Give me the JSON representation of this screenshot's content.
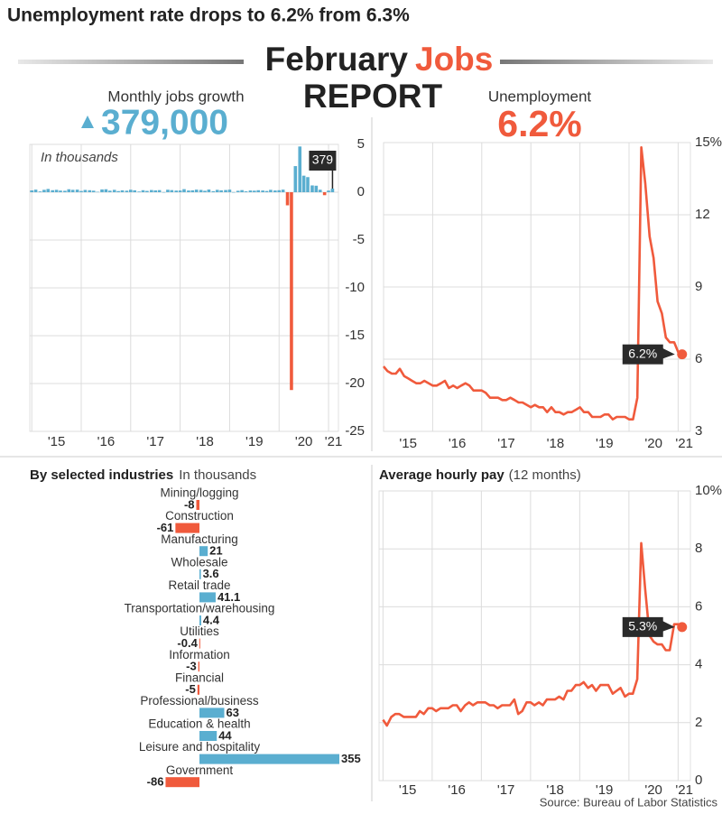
{
  "headline": "Unemployment rate drops to 6.2% from 6.3%",
  "title": {
    "month": "February",
    "topic": "Jobs",
    "kind": "REPORT"
  },
  "source": "Source: Bureau of Labor Statistics",
  "chart_data": [
    {
      "type": "bar",
      "title": "Monthly jobs growth",
      "highlight": "379,000",
      "note": "In thousands",
      "x": [
        2015,
        2015.08,
        2015.17,
        2015.25,
        2015.33,
        2015.42,
        2015.5,
        2015.58,
        2015.67,
        2015.75,
        2015.83,
        2015.92,
        2016,
        2016.08,
        2016.17,
        2016.25,
        2016.33,
        2016.42,
        2016.5,
        2016.58,
        2016.67,
        2016.75,
        2016.83,
        2016.92,
        2017,
        2017.08,
        2017.17,
        2017.25,
        2017.33,
        2017.42,
        2017.5,
        2017.58,
        2017.67,
        2017.75,
        2017.83,
        2017.92,
        2018,
        2018.08,
        2018.17,
        2018.25,
        2018.33,
        2018.42,
        2018.5,
        2018.58,
        2018.67,
        2018.75,
        2018.83,
        2018.92,
        2019,
        2019.08,
        2019.17,
        2019.25,
        2019.33,
        2019.42,
        2019.5,
        2019.58,
        2019.67,
        2019.75,
        2019.83,
        2019.92,
        2020,
        2020.08,
        2020.17,
        2020.25,
        2020.33,
        2020.42,
        2020.5,
        2020.58,
        2020.67,
        2020.75,
        2020.83,
        2020.92,
        2021,
        2021.08
      ],
      "values": [
        0.19,
        0.27,
        0.08,
        0.25,
        0.34,
        0.21,
        0.25,
        0.17,
        0.15,
        0.31,
        0.25,
        0.27,
        0.13,
        0.24,
        0.21,
        0.16,
        0.04,
        0.29,
        0.31,
        0.16,
        0.25,
        0.12,
        0.2,
        0.16,
        0.26,
        0.2,
        0.07,
        0.21,
        0.14,
        0.23,
        0.19,
        0.22,
        0.01,
        0.26,
        0.22,
        0.17,
        0.18,
        0.32,
        0.18,
        0.2,
        0.27,
        0.24,
        0.15,
        0.28,
        0.11,
        0.25,
        0.2,
        0.23,
        0.27,
        0.01,
        0.15,
        0.22,
        0.09,
        0.18,
        0.16,
        0.21,
        0.18,
        0.13,
        0.25,
        0.18,
        0.21,
        0.27,
        -1.37,
        -20.68,
        2.73,
        4.78,
        1.73,
        1.58,
        0.71,
        0.68,
        0.26,
        -0.31,
        0.17,
        0.379
      ],
      "annotation": {
        "x": 2021.08,
        "label": "379"
      },
      "positive_color": "#5aaed0",
      "negative_color": "#f05a3c",
      "xlim": [
        2014.96,
        2021.2
      ],
      "ylim": [
        -25,
        5
      ],
      "xticks": [
        {
          "value": 2015,
          "label": "'15"
        },
        {
          "value": 2016,
          "label": "'16"
        },
        {
          "value": 2017,
          "label": "'17"
        },
        {
          "value": 2018,
          "label": "'18"
        },
        {
          "value": 2019,
          "label": "'19"
        },
        {
          "value": 2020,
          "label": "'20"
        },
        {
          "value": 2021,
          "label": "'21"
        }
      ],
      "yticks": [
        5,
        0,
        -5,
        -10,
        -15,
        -20,
        -25
      ],
      "grid": true
    },
    {
      "type": "line",
      "title": "Unemployment",
      "highlight": "6.2%",
      "x": [
        2015,
        2015.08,
        2015.17,
        2015.25,
        2015.33,
        2015.42,
        2015.5,
        2015.58,
        2015.67,
        2015.75,
        2015.83,
        2015.92,
        2016,
        2016.08,
        2016.17,
        2016.25,
        2016.33,
        2016.42,
        2016.5,
        2016.58,
        2016.67,
        2016.75,
        2016.83,
        2016.92,
        2017,
        2017.08,
        2017.17,
        2017.25,
        2017.33,
        2017.42,
        2017.5,
        2017.58,
        2017.67,
        2017.75,
        2017.83,
        2017.92,
        2018,
        2018.08,
        2018.17,
        2018.25,
        2018.33,
        2018.42,
        2018.5,
        2018.58,
        2018.67,
        2018.75,
        2018.83,
        2018.92,
        2019,
        2019.08,
        2019.17,
        2019.25,
        2019.33,
        2019.42,
        2019.5,
        2019.58,
        2019.67,
        2019.75,
        2019.83,
        2019.92,
        2020,
        2020.08,
        2020.17,
        2020.25,
        2020.33,
        2020.42,
        2020.5,
        2020.58,
        2020.67,
        2020.75,
        2020.83,
        2020.92,
        2021,
        2021.08
      ],
      "series": [
        {
          "color": "#f05a3c",
          "values": [
            5.7,
            5.5,
            5.4,
            5.4,
            5.6,
            5.3,
            5.2,
            5.1,
            5.0,
            5.0,
            5.1,
            5.0,
            4.9,
            4.9,
            5.0,
            5.1,
            4.8,
            4.9,
            4.8,
            4.9,
            5.0,
            4.9,
            4.7,
            4.7,
            4.7,
            4.6,
            4.4,
            4.4,
            4.4,
            4.3,
            4.3,
            4.4,
            4.3,
            4.2,
            4.2,
            4.1,
            4.0,
            4.1,
            4.0,
            4.0,
            3.8,
            4.0,
            3.8,
            3.8,
            3.7,
            3.8,
            3.8,
            3.9,
            4.0,
            3.8,
            3.8,
            3.6,
            3.6,
            3.6,
            3.7,
            3.7,
            3.5,
            3.6,
            3.6,
            3.6,
            3.5,
            3.5,
            4.4,
            14.8,
            13.3,
            11.1,
            10.2,
            8.4,
            7.9,
            6.9,
            6.7,
            6.7,
            6.3,
            6.2
          ]
        }
      ],
      "annotation": {
        "x": 2021.08,
        "label": "6.2%"
      },
      "xlim": [
        2015,
        2021.25
      ],
      "ylim": [
        3,
        15
      ],
      "xticks": [
        {
          "value": 2015,
          "label": "'15"
        },
        {
          "value": 2016,
          "label": "'16"
        },
        {
          "value": 2017,
          "label": "'17"
        },
        {
          "value": 2018,
          "label": "'18"
        },
        {
          "value": 2019,
          "label": "'19"
        },
        {
          "value": 2020,
          "label": "'20"
        },
        {
          "value": 2021,
          "label": "'21"
        }
      ],
      "yticks": [
        3,
        6,
        9,
        12,
        {
          "value": 15,
          "label": "15%"
        }
      ],
      "grid": true
    },
    {
      "type": "hbar",
      "title": "By selected industries",
      "subtitle": "In thousands",
      "categories": [
        "Mining/logging",
        "Construction",
        "Manufacturing",
        "Wholesale",
        "Retail trade",
        "Transportation/warehousing",
        "Utilities",
        "Information",
        "Financial",
        "Professional/business",
        "Education & health",
        "Leisure and hospitality",
        "Government"
      ],
      "values": [
        -8,
        -61,
        21,
        3.6,
        41.1,
        4.4,
        -0.4,
        -3,
        -5,
        63,
        44,
        355,
        -86
      ],
      "positive_color": "#5aaed0",
      "negative_color": "#f05a3c"
    },
    {
      "type": "line",
      "title": "Average hourly pay",
      "subtitle": "(12 months)",
      "x": [
        2015,
        2015.08,
        2015.17,
        2015.25,
        2015.33,
        2015.42,
        2015.5,
        2015.58,
        2015.67,
        2015.75,
        2015.83,
        2015.92,
        2016,
        2016.08,
        2016.17,
        2016.25,
        2016.33,
        2016.42,
        2016.5,
        2016.58,
        2016.67,
        2016.75,
        2016.83,
        2016.92,
        2017,
        2017.08,
        2017.17,
        2017.25,
        2017.33,
        2017.42,
        2017.5,
        2017.58,
        2017.67,
        2017.75,
        2017.83,
        2017.92,
        2018,
        2018.08,
        2018.17,
        2018.25,
        2018.33,
        2018.42,
        2018.5,
        2018.58,
        2018.67,
        2018.75,
        2018.83,
        2018.92,
        2019,
        2019.08,
        2019.17,
        2019.25,
        2019.33,
        2019.42,
        2019.5,
        2019.58,
        2019.67,
        2019.75,
        2019.83,
        2019.92,
        2020,
        2020.08,
        2020.17,
        2020.25,
        2020.33,
        2020.42,
        2020.5,
        2020.58,
        2020.67,
        2020.75,
        2020.83,
        2020.92,
        2021,
        2021.08
      ],
      "series": [
        {
          "color": "#f05a3c",
          "values": [
            2.1,
            1.9,
            2.2,
            2.3,
            2.3,
            2.2,
            2.2,
            2.2,
            2.2,
            2.4,
            2.3,
            2.5,
            2.5,
            2.4,
            2.5,
            2.5,
            2.5,
            2.6,
            2.6,
            2.4,
            2.6,
            2.7,
            2.6,
            2.7,
            2.7,
            2.7,
            2.6,
            2.6,
            2.5,
            2.6,
            2.6,
            2.6,
            2.8,
            2.3,
            2.4,
            2.7,
            2.7,
            2.6,
            2.7,
            2.6,
            2.8,
            2.8,
            2.8,
            2.9,
            2.8,
            3.1,
            3.1,
            3.3,
            3.3,
            3.4,
            3.2,
            3.3,
            3.1,
            3.3,
            3.3,
            3.3,
            3.0,
            3.1,
            3.2,
            2.9,
            3.0,
            3.0,
            3.5,
            8.2,
            6.6,
            5.0,
            4.8,
            4.7,
            4.7,
            4.5,
            4.5,
            5.4,
            5.4,
            5.3
          ]
        }
      ],
      "annotation": {
        "x": 2021.08,
        "label": "5.3%"
      },
      "xlim": [
        2014.92,
        2021.25
      ],
      "ylim": [
        0,
        10
      ],
      "xticks": [
        {
          "value": 2015,
          "label": "'15"
        },
        {
          "value": 2016,
          "label": "'16"
        },
        {
          "value": 2017,
          "label": "'17"
        },
        {
          "value": 2018,
          "label": "'18"
        },
        {
          "value": 2019,
          "label": "'19"
        },
        {
          "value": 2020,
          "label": "'20"
        },
        {
          "value": 2021,
          "label": "'21"
        }
      ],
      "yticks": [
        0,
        2,
        4,
        6,
        8,
        {
          "value": 10,
          "label": "10%"
        }
      ],
      "grid": true
    }
  ]
}
